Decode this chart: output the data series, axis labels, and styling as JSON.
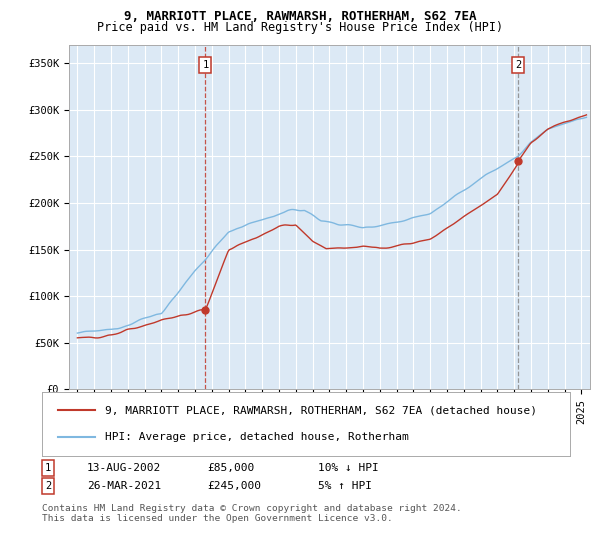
{
  "title": "9, MARRIOTT PLACE, RAWMARSH, ROTHERHAM, S62 7EA",
  "subtitle": "Price paid vs. HM Land Registry's House Price Index (HPI)",
  "ylabel_ticks": [
    "£0",
    "£50K",
    "£100K",
    "£150K",
    "£200K",
    "£250K",
    "£300K",
    "£350K"
  ],
  "ytick_values": [
    0,
    50000,
    100000,
    150000,
    200000,
    250000,
    300000,
    350000
  ],
  "ylim": [
    0,
    370000
  ],
  "xlim_start": 1994.5,
  "xlim_end": 2025.5,
  "bg_color": "#dce9f5",
  "hpi_color": "#7fb8e0",
  "sale_color": "#c0392b",
  "grid_color": "#ffffff",
  "marker1_x": 2002.62,
  "marker1_y": 85000,
  "marker2_x": 2021.23,
  "marker2_y": 245000,
  "legend_label_red": "9, MARRIOTT PLACE, RAWMARSH, ROTHERHAM, S62 7EA (detached house)",
  "legend_label_blue": "HPI: Average price, detached house, Rotherham",
  "annotation1_label": "13-AUG-2002",
  "annotation1_price": "£85,000",
  "annotation1_hpi": "10% ↓ HPI",
  "annotation2_label": "26-MAR-2021",
  "annotation2_price": "£245,000",
  "annotation2_hpi": "5% ↑ HPI",
  "footnote": "Contains HM Land Registry data © Crown copyright and database right 2024.\nThis data is licensed under the Open Government Licence v3.0.",
  "title_fontsize": 9,
  "subtitle_fontsize": 8.5,
  "tick_fontsize": 7.5,
  "legend_fontsize": 8,
  "anno_fontsize": 8
}
